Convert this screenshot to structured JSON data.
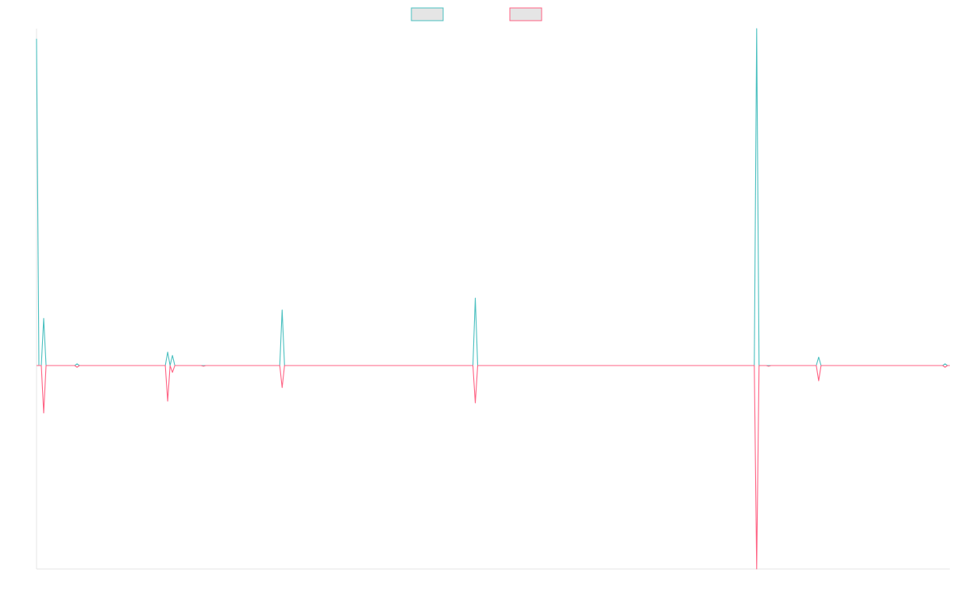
{
  "chart_data": {
    "type": "line",
    "title": "",
    "xlabel": "",
    "ylabel": "",
    "legend": {
      "placement": "top-center",
      "entries": [
        {
          "name": "",
          "color": "#4bc0c0",
          "fill": "#e5e5e5"
        },
        {
          "name": "",
          "color": "#ff6384",
          "fill": "#e5e5e5"
        }
      ]
    },
    "grid": false,
    "x": [
      0,
      1,
      2,
      3,
      4,
      5,
      6,
      7,
      8,
      9,
      10,
      11,
      12,
      13,
      14,
      15,
      16,
      17,
      18,
      19,
      20,
      21,
      22,
      23,
      24,
      25,
      26,
      27,
      28,
      29,
      30,
      31,
      32,
      33,
      34,
      35,
      36,
      37,
      38,
      39,
      40,
      41,
      42,
      43,
      44,
      45,
      46,
      47,
      48,
      49,
      50,
      51,
      52,
      53,
      54,
      55,
      56,
      57,
      58,
      59,
      60,
      61,
      62,
      63,
      64,
      65,
      66,
      67,
      68,
      69,
      70,
      71,
      72,
      73,
      74,
      75,
      76,
      77,
      78,
      79,
      80,
      81,
      82,
      83,
      84,
      85,
      86,
      87,
      88,
      89,
      90,
      91,
      92,
      93,
      94,
      95,
      96,
      97,
      98,
      99,
      100,
      101,
      102,
      103,
      104,
      105,
      106,
      107,
      108,
      109,
      110,
      111,
      112,
      113,
      114,
      115,
      116,
      117,
      118,
      119,
      120,
      121,
      122,
      123,
      124,
      125,
      126,
      127,
      128,
      129,
      130,
      131,
      132,
      133,
      134,
      135,
      136,
      137,
      138,
      139,
      140,
      141,
      142,
      143,
      144,
      145,
      146,
      147,
      148,
      149,
      150,
      151,
      152,
      153,
      154,
      155,
      156,
      157,
      158,
      159,
      160,
      161,
      162,
      163,
      164,
      165,
      166,
      167,
      168,
      169,
      170,
      171,
      172,
      173,
      174,
      175,
      176,
      177,
      178,
      179,
      180,
      181,
      182,
      183,
      184,
      185,
      186,
      187,
      188,
      189,
      190,
      191,
      192,
      193,
      194,
      195,
      196,
      197,
      198,
      199,
      200,
      201,
      202,
      203,
      204,
      205,
      206,
      207,
      208,
      209,
      210,
      211,
      212,
      213,
      214,
      215,
      216,
      217,
      218,
      219,
      220,
      221,
      222,
      223,
      224,
      225,
      226,
      227,
      228,
      229,
      230,
      231,
      232,
      233,
      234,
      235,
      236,
      237,
      238,
      239,
      240,
      241,
      242,
      243,
      244,
      245,
      246,
      247,
      248,
      249,
      250,
      251,
      252,
      253,
      254,
      255,
      256,
      257,
      258,
      259,
      260,
      261,
      262,
      263,
      264,
      265,
      266,
      267,
      268,
      269,
      270,
      271,
      272,
      273,
      274,
      275,
      276,
      277,
      278,
      279,
      280,
      281,
      282,
      283,
      284,
      285,
      286,
      287,
      288,
      289,
      290,
      291,
      292,
      293,
      294,
      295,
      296,
      297,
      298,
      299,
      300,
      301,
      302,
      303,
      304,
      305,
      306,
      307,
      308,
      309,
      310,
      311,
      312,
      313,
      314,
      315,
      316,
      317,
      318,
      319,
      320,
      321,
      322,
      323,
      324,
      325,
      326,
      327,
      328,
      329,
      330,
      331,
      332,
      333,
      334,
      335,
      336,
      337,
      338,
      339,
      340,
      341,
      342,
      343,
      344,
      345,
      346,
      347,
      348,
      349,
      350,
      351,
      352,
      353,
      354,
      355,
      356,
      357,
      358,
      359,
      360,
      361,
      362,
      363,
      364,
      365,
      366,
      367,
      368,
      369,
      370,
      371,
      372,
      373,
      374,
      375,
      376,
      377,
      378,
      379,
      380,
      381,
      382,
      383
    ],
    "series": [
      {
        "color": "#4bc0c0",
        "spikes": [
          {
            "x": 0,
            "y": 0.97
          },
          {
            "x": 1,
            "y": 0.0
          },
          {
            "x": 2,
            "y": 0.0
          },
          {
            "x": 3,
            "y": 0.14
          },
          {
            "x": 4,
            "y": 0.0
          },
          {
            "x": 17,
            "y": 0.005
          },
          {
            "x": 55,
            "y": 0.04
          },
          {
            "x": 56,
            "y": 0.0
          },
          {
            "x": 57,
            "y": 0.03
          },
          {
            "x": 58,
            "y": 0.0
          },
          {
            "x": 103,
            "y": 0.165
          },
          {
            "x": 184,
            "y": 0.2
          },
          {
            "x": 302,
            "y": 1.0
          },
          {
            "x": 328,
            "y": 0.025
          },
          {
            "x": 381,
            "y": 0.005
          }
        ]
      },
      {
        "color": "#ff6384",
        "spikes": [
          {
            "x": 0,
            "y": 0.0
          },
          {
            "x": 1,
            "y": 0.0
          },
          {
            "x": 2,
            "y": 0.0
          },
          {
            "x": 3,
            "y": -0.14
          },
          {
            "x": 4,
            "y": 0.0
          },
          {
            "x": 17,
            "y": -0.005
          },
          {
            "x": 55,
            "y": -0.105
          },
          {
            "x": 56,
            "y": 0.0
          },
          {
            "x": 57,
            "y": -0.02
          },
          {
            "x": 58,
            "y": 0.0
          },
          {
            "x": 70,
            "y": -0.002
          },
          {
            "x": 103,
            "y": -0.065
          },
          {
            "x": 184,
            "y": -0.11
          },
          {
            "x": 302,
            "y": -0.6
          },
          {
            "x": 307,
            "y": -0.002
          },
          {
            "x": 328,
            "y": -0.045
          },
          {
            "x": 381,
            "y": -0.005
          }
        ]
      }
    ],
    "xlim": [
      0,
      383
    ],
    "ylim": [
      -0.6,
      1.0
    ]
  }
}
